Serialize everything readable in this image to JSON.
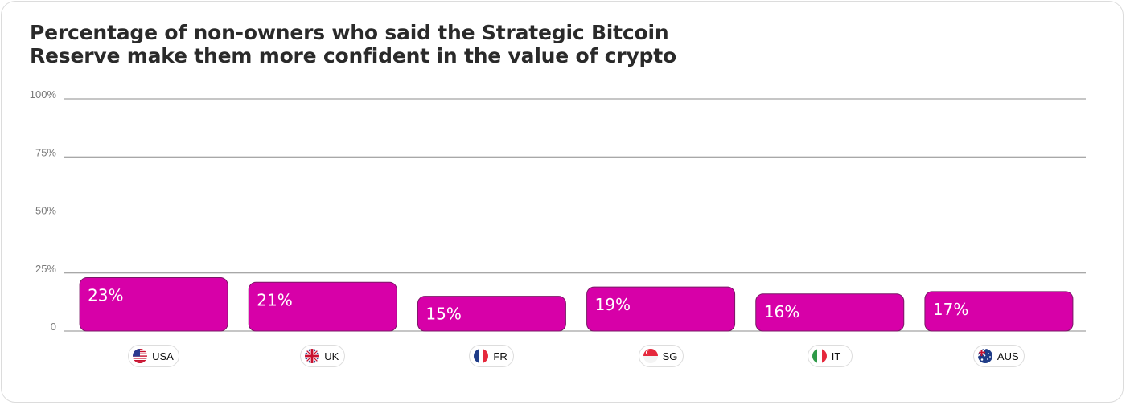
{
  "chart_data": {
    "type": "bar",
    "title_lines": [
      "Percentage of non-owners who said the Strategic Bitcoin",
      "Reserve make them more confident in the value of crypto"
    ],
    "categories": [
      "USA",
      "UK",
      "FR",
      "SG",
      "IT",
      "AUS"
    ],
    "flag_icons": [
      "us-flag-icon",
      "uk-flag-icon",
      "fr-flag-icon",
      "sg-flag-icon",
      "it-flag-icon",
      "au-flag-icon"
    ],
    "values": [
      23,
      21,
      15,
      19,
      16,
      17
    ],
    "value_labels": [
      "23%",
      "21%",
      "15%",
      "19%",
      "16%",
      "17%"
    ],
    "ylim": [
      0,
      100
    ],
    "yticks": [
      0,
      25,
      50,
      75,
      100
    ],
    "ytick_labels": [
      "0",
      "25%",
      "50%",
      "75%",
      "100%"
    ],
    "grid": true,
    "bar_color": "#d700a8",
    "bar_border_color": "#7a1866"
  }
}
